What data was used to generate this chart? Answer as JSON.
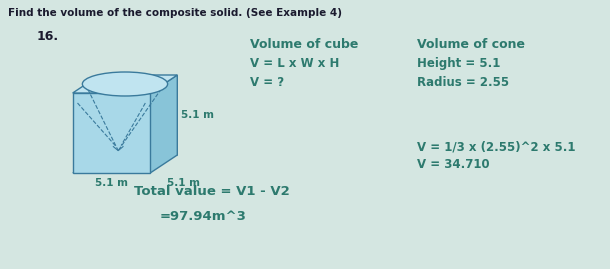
{
  "title": "Find the volume of the composite solid. (See Example 4)",
  "problem_number": "16.",
  "background_color": "#d4e6e1",
  "text_color": "#2d7a6e",
  "title_color": "#1a1a2e",
  "cube_label_side": "5.1 m",
  "cube_label_front_bottom": "5.1 m",
  "cube_label_right_bottom": "5.1 m",
  "col1_header": "Volume of cube",
  "col1_line1": "V = L x W x H",
  "col1_line2": "V = ?",
  "col2_header": "Volume of cone",
  "col2_line1": "Height = 5.1",
  "col2_line2": "Radius = 2.55",
  "col2_line3": "V = 1/3 x (2.55)^2 x 5.1",
  "col2_line4": "V = 34.710",
  "bottom_line1": "Total value = V1 - V2",
  "bottom_line2": "=97.94m^3",
  "cube_face_color": "#a8d8e8",
  "cube_top_color": "#c0e4f0",
  "cube_right_color": "#88c4d8",
  "cube_edge_color": "#3a7a9c",
  "ellipse_color": "#c0e4f0"
}
